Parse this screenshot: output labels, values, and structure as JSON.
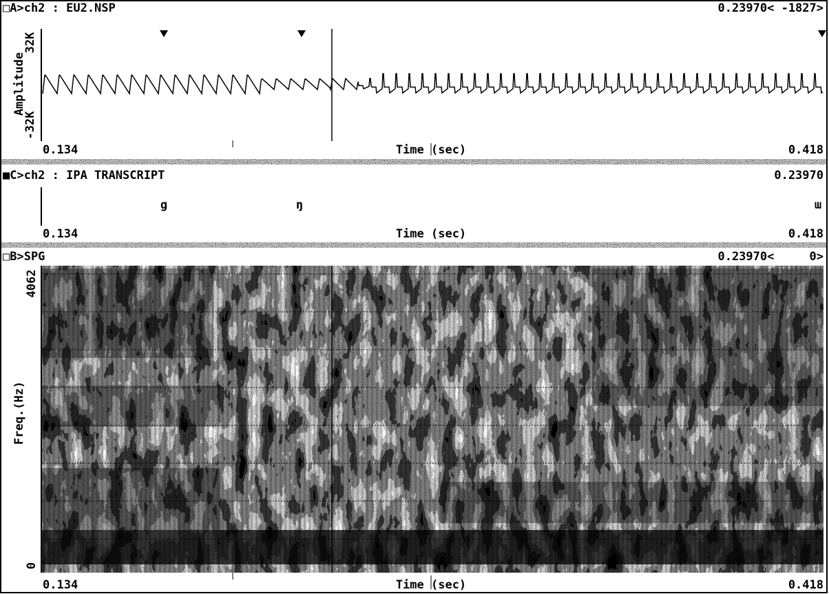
{
  "panels": [
    {
      "header_left": "□A>ch2 : EU2.NSP",
      "header_right": "0.23970< -1827>",
      "y_axis_label": "Amplitude",
      "y_ticks": [
        "32K",
        "-32K"
      ],
      "x_start": "0.134",
      "x_axis_label": "Time (sec)",
      "x_end": "0.418"
    },
    {
      "header_left": "■C>ch2 : IPA TRANSCRIPT",
      "header_right": "0.23970",
      "transcript": [
        "g",
        "ŋ",
        "ɯ"
      ],
      "x_start": "0.134",
      "x_axis_label": "Time (sec)",
      "x_end": "0.418"
    },
    {
      "header_left": "□B>SPG",
      "header_right": "0.23970<     0>",
      "y_axis_label": "Freq.(Hz)",
      "y_ticks": [
        "4062",
        "0"
      ],
      "x_start": "0.134",
      "x_axis_label": "Time (sec)",
      "x_end": "0.418"
    }
  ]
}
